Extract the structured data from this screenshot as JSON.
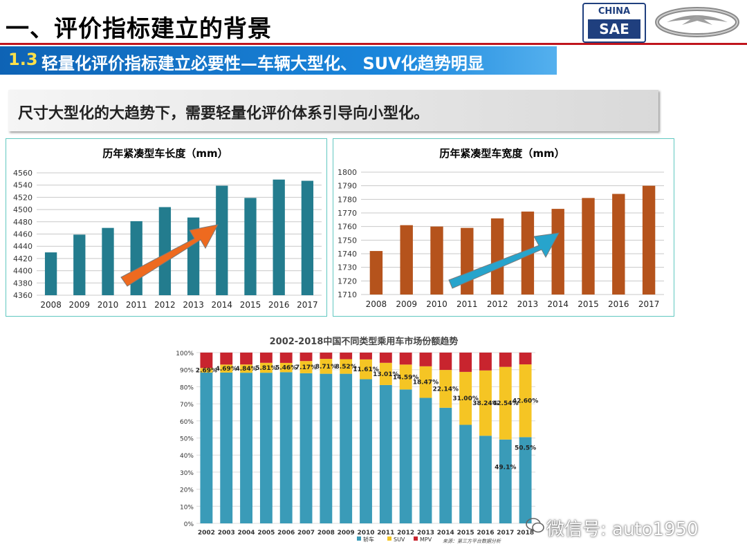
{
  "header": {
    "title": "一、评价指标建立的背景",
    "sub_number": "1.3",
    "sub_text": "轻量化评价指标建立必要性—车辆大型化、 SUV化趋势明显",
    "logo_china": "CHINA",
    "logo_sae": "SAE"
  },
  "note": "尺寸大型化的大趋势下，需要轻量化评价体系引导向小型化。",
  "watermark": "微信号: auto1950",
  "colors": {
    "teal_bar": "#237c8e",
    "orange_bar": "#b5531c",
    "arrow_orange": "#ee6a1f",
    "arrow_blue": "#27a4cc",
    "car": "#3a9bb8",
    "suv": "#f5c524",
    "mpv": "#c8242e"
  },
  "chart_data": [
    {
      "type": "bar",
      "title": "历年紧凑型车长度（mm）",
      "categories": [
        "2008",
        "2009",
        "2010",
        "2011",
        "2012",
        "2013",
        "2014",
        "2015",
        "2016",
        "2017"
      ],
      "values": [
        4430,
        4459,
        4470,
        4481,
        4504,
        4487,
        4539,
        4519,
        4549,
        4547
      ],
      "ylim": [
        4360,
        4560
      ],
      "yticks": [
        "4360",
        "4380",
        "4400",
        "4420",
        "4440",
        "4460",
        "4480",
        "4500",
        "4520",
        "4540",
        "4560"
      ],
      "grid": true
    },
    {
      "type": "bar",
      "title": "历年紧凑型车宽度（mm）",
      "categories": [
        "2008",
        "2009",
        "2010",
        "2011",
        "2012",
        "2013",
        "2014",
        "2015",
        "2016",
        "2017"
      ],
      "values": [
        1742,
        1761,
        1760,
        1759,
        1766,
        1771,
        1773,
        1781,
        1784,
        1790
      ],
      "ylim": [
        1710,
        1800
      ],
      "yticks": [
        "1710",
        "1720",
        "1730",
        "1740",
        "1750",
        "1760",
        "1770",
        "1780",
        "1790",
        "1800"
      ],
      "grid": true
    },
    {
      "type": "bar",
      "stacked": true,
      "title": "2002-2018中国不同类型乘用车市场份额趋势",
      "categories": [
        "2002",
        "2003",
        "2004",
        "2005",
        "2006",
        "2007",
        "2008",
        "2009",
        "2010",
        "2011",
        "2012",
        "2013",
        "2014",
        "2015",
        "2016",
        "2017",
        "2018"
      ],
      "yticks": [
        "0%",
        "10%",
        "20%",
        "30%",
        "40%",
        "50%",
        "60%",
        "70%",
        "80%",
        "90%",
        "100%"
      ],
      "series": [
        {
          "name": "轿车",
          "values": [
            88.3,
            88.3,
            88.2,
            88.2,
            88.5,
            87.9,
            87.6,
            87.6,
            84.4,
            81.0,
            78.4,
            73.5,
            67.7,
            57.7,
            51.3,
            49.1,
            50.5
          ]
        },
        {
          "name": "SUV",
          "values": [
            2.69,
            4.69,
            4.84,
            5.81,
            5.46,
            7.17,
            8.71,
            8.52,
            11.61,
            13.01,
            14.59,
            18.47,
            22.14,
            31.0,
            38.24,
            42.54,
            42.6
          ]
        },
        {
          "name": "MPV",
          "values": [
            9.01,
            7.01,
            6.96,
            5.99,
            6.04,
            4.93,
            3.69,
            3.88,
            3.99,
            5.99,
            7.01,
            8.03,
            10.16,
            11.3,
            10.46,
            8.36,
            6.9
          ]
        }
      ],
      "suv_labels": [
        "2.69%",
        "4.69%",
        "4.84%",
        "5.81%",
        "5.46%",
        "7.17%",
        "8.71%",
        "8.52%",
        "11.61%",
        "13.01%",
        "14.59%",
        "18.47%",
        "22.14%",
        "31.00%",
        "38.24%",
        "42.54%",
        "42.60%"
      ],
      "car_labels": {
        "2017": "49.1%",
        "2018": "50.5%"
      },
      "legend_position": "bottom",
      "source": "来源：第三方平台数据分析"
    }
  ]
}
